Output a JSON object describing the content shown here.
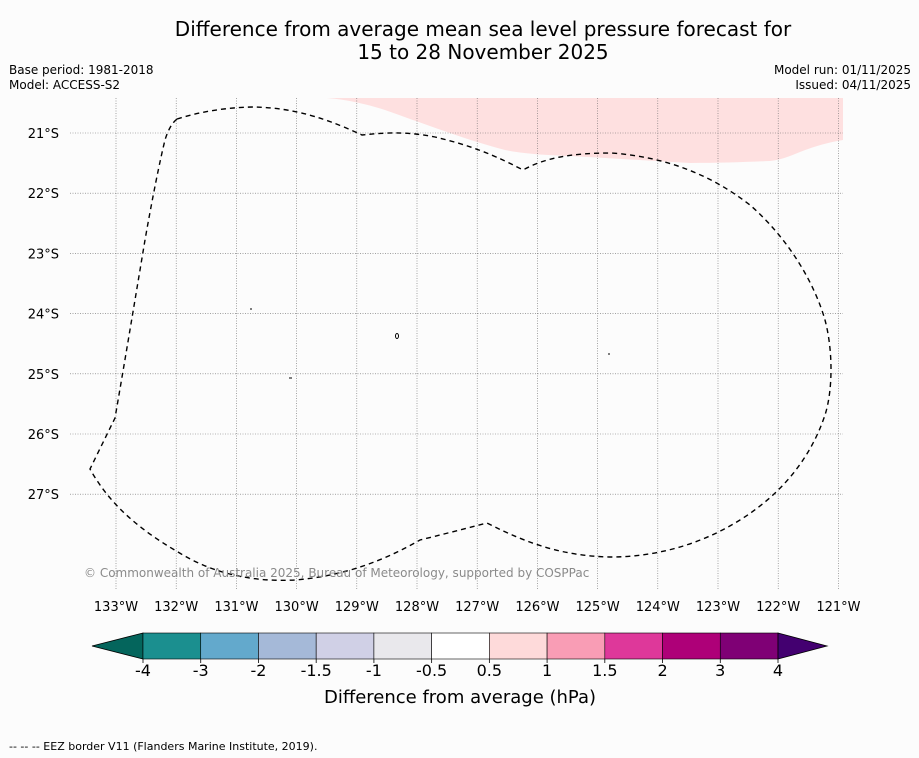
{
  "title_line1": "Difference from average mean sea level pressure forecast for",
  "title_line2": "15 to 28 November 2025",
  "base_period": "Base period: 1981-2018",
  "model": "Model: ACCESS-S2",
  "model_run": "Model run: 01/11/2025",
  "issued": "Issued: 04/11/2025",
  "copyright": "© Commonwealth of Australia 2025, Bureau of Meteorology, supported by COSPPac",
  "footer_legend": "-- -- -- EEZ border V11 (Flanders Marine Institute, 2019).",
  "chart_data": {
    "type": "map",
    "lon_ticks": [
      {
        "value": -133,
        "label": "133°W"
      },
      {
        "value": -132,
        "label": "132°W"
      },
      {
        "value": -131,
        "label": "131°W"
      },
      {
        "value": -130,
        "label": "130°W"
      },
      {
        "value": -129,
        "label": "129°W"
      },
      {
        "value": -128,
        "label": "128°W"
      },
      {
        "value": -127,
        "label": "127°W"
      },
      {
        "value": -126,
        "label": "126°W"
      },
      {
        "value": -125,
        "label": "125°W"
      },
      {
        "value": -124,
        "label": "124°W"
      },
      {
        "value": -123,
        "label": "123°W"
      },
      {
        "value": -122,
        "label": "122°W"
      },
      {
        "value": -121,
        "label": "121°W"
      }
    ],
    "lat_ticks": [
      {
        "value": -21,
        "label": "21°S"
      },
      {
        "value": -22,
        "label": "22°S"
      },
      {
        "value": -23,
        "label": "23°S"
      },
      {
        "value": -24,
        "label": "24°S"
      },
      {
        "value": -25,
        "label": "25°S"
      },
      {
        "value": -26,
        "label": "26°S"
      },
      {
        "value": -27,
        "label": "27°S"
      }
    ],
    "colorbar": {
      "label": "Difference from average (hPa)",
      "tick_labels": [
        "-4",
        "-3",
        "-2",
        "-1.5",
        "-1",
        "-0.5",
        "0.5",
        "1",
        "1.5",
        "2",
        "3",
        "4"
      ],
      "colors": [
        "#1b8f8f",
        "#63a9cc",
        "#a5b9d8",
        "#d0d0e6",
        "#e9e8ec",
        "#ffffff",
        "#fedada",
        "#f99db5",
        "#de389a",
        "#ae0078",
        "#7f0075"
      ],
      "extend_low_color": "#04655c",
      "extend_high_color": "#430070"
    },
    "shaded_region": {
      "category": "0.5 to 1",
      "color": "#fee0e0"
    }
  }
}
